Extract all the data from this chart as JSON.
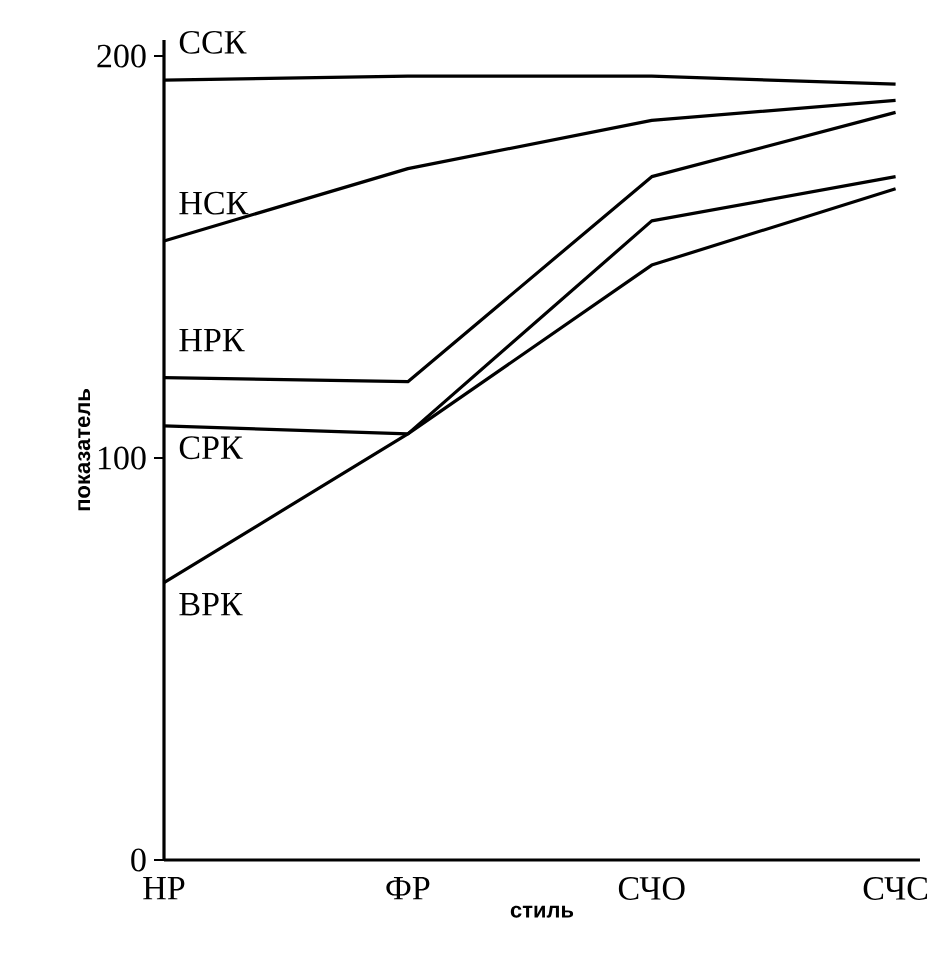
{
  "chart_data": {
    "type": "line",
    "xlabel": "стиль",
    "ylabel": "показатель",
    "categories": [
      "НР",
      "ФР",
      "СЧО",
      "СЧС"
    ],
    "ylim": [
      0,
      204
    ],
    "yticks": [
      0,
      100,
      200
    ],
    "series": [
      {
        "name": "ССК",
        "color": "#000000",
        "values": [
          194,
          195,
          195,
          193
        ]
      },
      {
        "name": "НСК",
        "color": "#000000",
        "values": [
          154,
          172,
          184,
          189
        ]
      },
      {
        "name": "НРК",
        "color": "#000000",
        "values": [
          120,
          119,
          170,
          186
        ]
      },
      {
        "name": "СРК",
        "color": "#000000",
        "values": [
          108,
          106,
          159,
          170
        ]
      },
      {
        "name": "ВРК",
        "color": "#000000",
        "values": [
          69,
          106,
          148,
          167
        ]
      }
    ]
  }
}
